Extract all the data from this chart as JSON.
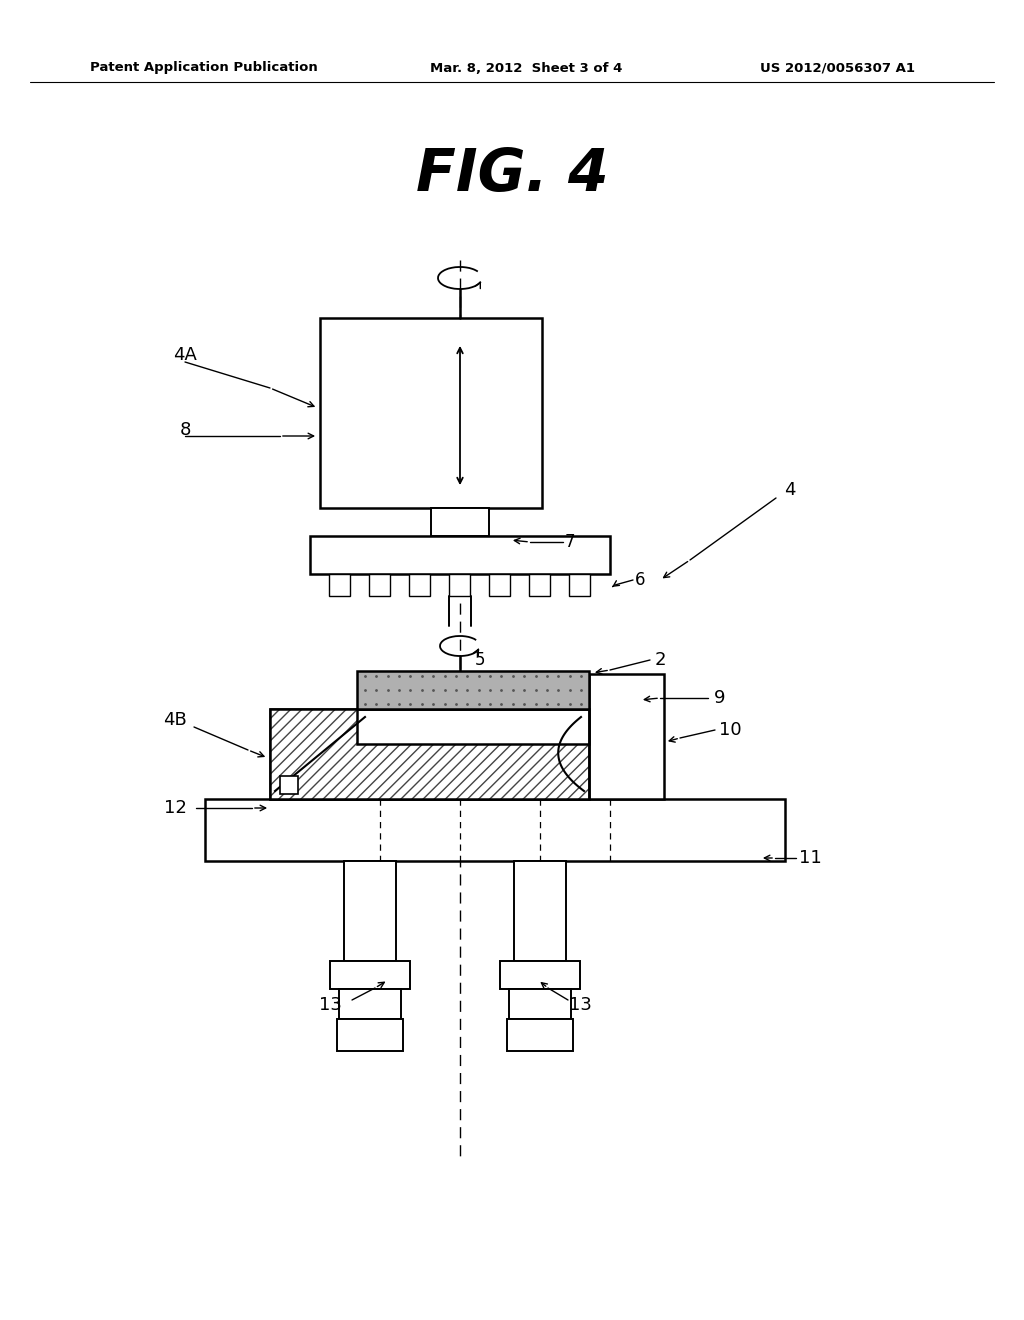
{
  "title": "FIG. 4",
  "header_left": "Patent Application Publication",
  "header_mid": "Mar. 8, 2012  Sheet 3 of 4",
  "header_right": "US 2012/0056307 A1",
  "bg_color": "#ffffff",
  "line_color": "#000000",
  "fig_width": 10.24,
  "fig_height": 13.2,
  "dpi": 100
}
